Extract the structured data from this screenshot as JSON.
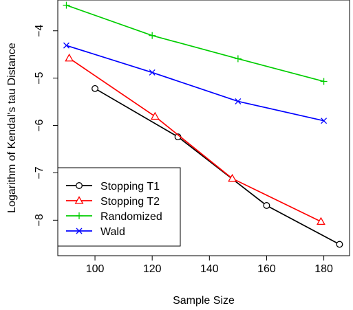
{
  "chart_data": {
    "type": "line",
    "xlabel": "Sample Size",
    "ylabel": "Logarithm of Kendal's tau Distance",
    "xlim": [
      87,
      189
    ],
    "ylim": [
      -8.75,
      -3.35
    ],
    "xticks": [
      100,
      120,
      140,
      160,
      180
    ],
    "yticks": [
      -8,
      -7,
      -6,
      -5,
      -4
    ],
    "xtick_labels": [
      "100",
      "120",
      "140",
      "160",
      "180"
    ],
    "ytick_labels": [
      "−8",
      "−7",
      "−6",
      "−5",
      "−4"
    ],
    "legend_position": "bottom-left",
    "series": [
      {
        "name": "Stopping T1",
        "color": "#000000",
        "marker": "circle",
        "points": [
          [
            100,
            -5.22
          ],
          [
            129,
            -6.24
          ],
          [
            160,
            -7.69
          ],
          [
            185.5,
            -8.51
          ]
        ]
      },
      {
        "name": "Stopping T2",
        "color": "#ff0000",
        "marker": "triangle",
        "points": [
          [
            91,
            -4.58
          ],
          [
            121,
            -5.81
          ],
          [
            148,
            -7.12
          ],
          [
            179,
            -8.03
          ]
        ]
      },
      {
        "name": "Randomized",
        "color": "#00cd00",
        "marker": "plus",
        "points": [
          [
            90,
            -3.46
          ],
          [
            120,
            -4.1
          ],
          [
            150,
            -4.59
          ],
          [
            180,
            -5.07
          ]
        ]
      },
      {
        "name": "Wald",
        "color": "#0000ff",
        "marker": "cross",
        "points": [
          [
            90,
            -4.31
          ],
          [
            120,
            -4.88
          ],
          [
            150,
            -5.49
          ],
          [
            180,
            -5.9
          ]
        ]
      }
    ]
  }
}
